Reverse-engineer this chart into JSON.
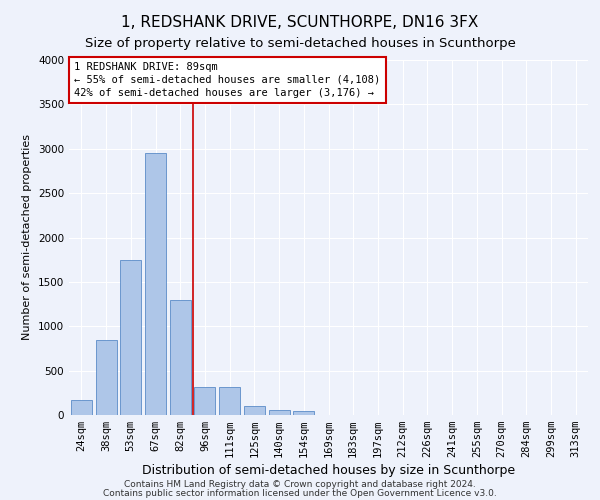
{
  "title": "1, REDSHANK DRIVE, SCUNTHORPE, DN16 3FX",
  "subtitle": "Size of property relative to semi-detached houses in Scunthorpe",
  "xlabel": "Distribution of semi-detached houses by size in Scunthorpe",
  "ylabel": "Number of semi-detached properties",
  "categories": [
    "24sqm",
    "38sqm",
    "53sqm",
    "67sqm",
    "82sqm",
    "96sqm",
    "111sqm",
    "125sqm",
    "140sqm",
    "154sqm",
    "169sqm",
    "183sqm",
    "197sqm",
    "212sqm",
    "226sqm",
    "241sqm",
    "255sqm",
    "270sqm",
    "284sqm",
    "299sqm",
    "313sqm"
  ],
  "values": [
    170,
    850,
    1750,
    2950,
    1300,
    320,
    320,
    100,
    60,
    50,
    0,
    0,
    0,
    0,
    0,
    0,
    0,
    0,
    0,
    0,
    0
  ],
  "bar_color": "#aec6e8",
  "bar_edge_color": "#5b8cc8",
  "annotation_box_text": "1 REDSHANK DRIVE: 89sqm\n← 55% of semi-detached houses are smaller (4,108)\n42% of semi-detached houses are larger (3,176) →",
  "annotation_box_color": "#ffffff",
  "annotation_line_color": "#cc0000",
  "ylim": [
    0,
    4000
  ],
  "yticks": [
    0,
    500,
    1000,
    1500,
    2000,
    2500,
    3000,
    3500,
    4000
  ],
  "background_color": "#eef2fb",
  "plot_bg_color": "#eef2fb",
  "grid_color": "#ffffff",
  "footer_line1": "Contains HM Land Registry data © Crown copyright and database right 2024.",
  "footer_line2": "Contains public sector information licensed under the Open Government Licence v3.0.",
  "title_fontsize": 11,
  "subtitle_fontsize": 9.5,
  "xlabel_fontsize": 9,
  "ylabel_fontsize": 8,
  "tick_fontsize": 7.5,
  "footer_fontsize": 6.5,
  "annot_fontsize": 7.5,
  "line_x_index": 4.5
}
